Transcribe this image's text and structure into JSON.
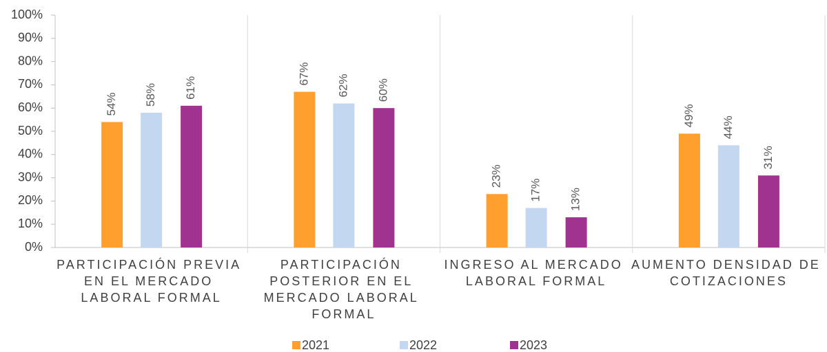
{
  "chart_data": {
    "type": "bar",
    "categories": [
      "PARTICIPACIÓN PREVIA EN EL MERCADO LABORAL FORMAL",
      "PARTICIPACIÓN POSTERIOR EN EL MERCADO LABORAL FORMAL",
      "INGRESO AL MERCADO LABORAL FORMAL",
      "AUMENTO DENSIDAD DE COTIZACIONES"
    ],
    "series": [
      {
        "name": "2021",
        "color": "#ffa02e",
        "values": [
          54,
          67,
          23,
          49
        ],
        "value_labels": [
          "54%",
          "67%",
          "23%",
          "49%"
        ]
      },
      {
        "name": "2022",
        "color": "#c3d7f0",
        "values": [
          58,
          62,
          17,
          44
        ],
        "value_labels": [
          "58%",
          "62%",
          "17%",
          "44%"
        ]
      },
      {
        "name": "2023",
        "color": "#a0338f",
        "values": [
          61,
          60,
          13,
          31
        ],
        "value_labels": [
          "61%",
          "60%",
          "13%",
          "31%"
        ]
      }
    ],
    "ylim": [
      0,
      100
    ],
    "yticks": [
      {
        "value": 0,
        "label": "0%"
      },
      {
        "value": 10,
        "label": "10%"
      },
      {
        "value": 20,
        "label": "20%"
      },
      {
        "value": 30,
        "label": "30%"
      },
      {
        "value": 40,
        "label": "40%"
      },
      {
        "value": 50,
        "label": "50%"
      },
      {
        "value": 60,
        "label": "60%"
      },
      {
        "value": 70,
        "label": "70%"
      },
      {
        "value": 80,
        "label": "80%"
      },
      {
        "value": 90,
        "label": "90%"
      },
      {
        "value": 100,
        "label": "100%"
      }
    ],
    "legend": "bottom"
  }
}
